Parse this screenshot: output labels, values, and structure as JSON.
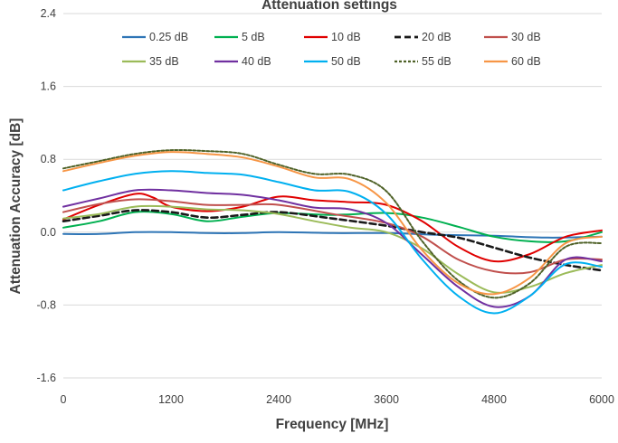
{
  "chart_data": {
    "type": "line",
    "title": "Attenuation settings",
    "xlabel": "Frequency [MHz]",
    "ylabel": "Attenuation Accuracy [dB]",
    "xlim": [
      0,
      6000
    ],
    "ylim": [
      -1.6,
      2.4
    ],
    "x_ticks": [
      "0",
      "1200",
      "2400",
      "3600",
      "4800",
      "6000"
    ],
    "y_ticks": [
      "2.4",
      "1.6",
      "0.8",
      "0.0",
      "-0.8",
      "-1.6"
    ],
    "grid": "horizontal",
    "legend_position": "top",
    "series": [
      {
        "name": "0.25 dB",
        "color": "#2e75b6",
        "dash": "solid",
        "points": [
          [
            0,
            -0.02
          ],
          [
            400,
            -0.02
          ],
          [
            800,
            0.0
          ],
          [
            1200,
            0.0
          ],
          [
            1600,
            -0.01
          ],
          [
            2000,
            -0.01
          ],
          [
            2400,
            0.0
          ],
          [
            3000,
            -0.01
          ],
          [
            3600,
            -0.01
          ],
          [
            4200,
            -0.03
          ],
          [
            4800,
            -0.04
          ],
          [
            5400,
            -0.06
          ],
          [
            6000,
            -0.05
          ]
        ]
      },
      {
        "name": "5 dB",
        "color": "#00b050",
        "dash": "solid",
        "points": [
          [
            0,
            0.05
          ],
          [
            400,
            0.12
          ],
          [
            800,
            0.22
          ],
          [
            1200,
            0.2
          ],
          [
            1600,
            0.12
          ],
          [
            2000,
            0.17
          ],
          [
            2400,
            0.21
          ],
          [
            3000,
            0.19
          ],
          [
            3600,
            0.21
          ],
          [
            4000,
            0.16
          ],
          [
            4400,
            0.06
          ],
          [
            4800,
            -0.05
          ],
          [
            5200,
            -0.1
          ],
          [
            5600,
            -0.1
          ],
          [
            6000,
            0.0
          ]
        ]
      },
      {
        "name": "10 dB",
        "color": "#e00000",
        "dash": "solid",
        "points": [
          [
            0,
            0.14
          ],
          [
            400,
            0.3
          ],
          [
            800,
            0.42
          ],
          [
            1000,
            0.38
          ],
          [
            1200,
            0.28
          ],
          [
            1600,
            0.23
          ],
          [
            2000,
            0.28
          ],
          [
            2400,
            0.39
          ],
          [
            2800,
            0.35
          ],
          [
            3200,
            0.33
          ],
          [
            3600,
            0.3
          ],
          [
            4000,
            0.12
          ],
          [
            4400,
            -0.16
          ],
          [
            4800,
            -0.32
          ],
          [
            5200,
            -0.24
          ],
          [
            5600,
            -0.05
          ],
          [
            6000,
            0.02
          ]
        ]
      },
      {
        "name": "20 dB",
        "color": "#1a1a1a",
        "dash": "dashed",
        "points": [
          [
            0,
            0.12
          ],
          [
            400,
            0.18
          ],
          [
            800,
            0.24
          ],
          [
            1200,
            0.22
          ],
          [
            1600,
            0.16
          ],
          [
            2000,
            0.19
          ],
          [
            2400,
            0.22
          ],
          [
            3000,
            0.15
          ],
          [
            3600,
            0.07
          ],
          [
            4000,
            0.0
          ],
          [
            4400,
            -0.06
          ],
          [
            4800,
            -0.17
          ],
          [
            5200,
            -0.28
          ],
          [
            5600,
            -0.36
          ],
          [
            6000,
            -0.42
          ]
        ]
      },
      {
        "name": "30 dB",
        "color": "#c0504d",
        "dash": "solid",
        "points": [
          [
            0,
            0.22
          ],
          [
            400,
            0.31
          ],
          [
            800,
            0.36
          ],
          [
            1200,
            0.34
          ],
          [
            1600,
            0.3
          ],
          [
            2000,
            0.3
          ],
          [
            2400,
            0.3
          ],
          [
            3000,
            0.2
          ],
          [
            3600,
            0.1
          ],
          [
            4000,
            -0.05
          ],
          [
            4400,
            -0.3
          ],
          [
            4800,
            -0.43
          ],
          [
            5200,
            -0.44
          ],
          [
            5600,
            -0.3
          ],
          [
            6000,
            -0.3
          ]
        ]
      },
      {
        "name": "35 dB",
        "color": "#9bbb59",
        "dash": "solid",
        "points": [
          [
            0,
            0.15
          ],
          [
            400,
            0.2
          ],
          [
            800,
            0.28
          ],
          [
            1200,
            0.28
          ],
          [
            1600,
            0.25
          ],
          [
            2000,
            0.24
          ],
          [
            2400,
            0.2
          ],
          [
            2800,
            0.12
          ],
          [
            3200,
            0.05
          ],
          [
            3600,
            0.0
          ],
          [
            4000,
            -0.18
          ],
          [
            4400,
            -0.46
          ],
          [
            4800,
            -0.66
          ],
          [
            5200,
            -0.6
          ],
          [
            5600,
            -0.45
          ],
          [
            6000,
            -0.36
          ]
        ]
      },
      {
        "name": "40 dB",
        "color": "#7030a0",
        "dash": "solid",
        "points": [
          [
            0,
            0.28
          ],
          [
            400,
            0.37
          ],
          [
            800,
            0.46
          ],
          [
            1200,
            0.46
          ],
          [
            1600,
            0.43
          ],
          [
            2000,
            0.41
          ],
          [
            2400,
            0.35
          ],
          [
            2800,
            0.27
          ],
          [
            3200,
            0.25
          ],
          [
            3600,
            0.1
          ],
          [
            4000,
            -0.25
          ],
          [
            4400,
            -0.6
          ],
          [
            4800,
            -0.82
          ],
          [
            5200,
            -0.7
          ],
          [
            5600,
            -0.3
          ],
          [
            6000,
            -0.32
          ]
        ]
      },
      {
        "name": "50 dB",
        "color": "#00b0f0",
        "dash": "solid",
        "points": [
          [
            0,
            0.46
          ],
          [
            400,
            0.56
          ],
          [
            800,
            0.64
          ],
          [
            1200,
            0.67
          ],
          [
            1600,
            0.65
          ],
          [
            2000,
            0.63
          ],
          [
            2400,
            0.55
          ],
          [
            2800,
            0.46
          ],
          [
            3200,
            0.44
          ],
          [
            3600,
            0.2
          ],
          [
            4000,
            -0.3
          ],
          [
            4400,
            -0.7
          ],
          [
            4800,
            -0.89
          ],
          [
            5200,
            -0.7
          ],
          [
            5600,
            -0.35
          ],
          [
            6000,
            -0.38
          ]
        ]
      },
      {
        "name": "55 dB",
        "color": "#4f6228",
        "dash": "dotted",
        "points": [
          [
            0,
            0.7
          ],
          [
            400,
            0.78
          ],
          [
            800,
            0.86
          ],
          [
            1200,
            0.9
          ],
          [
            1600,
            0.89
          ],
          [
            2000,
            0.86
          ],
          [
            2400,
            0.74
          ],
          [
            2800,
            0.64
          ],
          [
            3200,
            0.63
          ],
          [
            3600,
            0.45
          ],
          [
            4000,
            -0.1
          ],
          [
            4400,
            -0.53
          ],
          [
            4800,
            -0.72
          ],
          [
            5200,
            -0.56
          ],
          [
            5600,
            -0.16
          ],
          [
            6000,
            -0.12
          ]
        ]
      },
      {
        "name": "60 dB",
        "color": "#f79646",
        "dash": "solid",
        "points": [
          [
            0,
            0.67
          ],
          [
            400,
            0.76
          ],
          [
            800,
            0.84
          ],
          [
            1200,
            0.88
          ],
          [
            1600,
            0.86
          ],
          [
            2000,
            0.82
          ],
          [
            2400,
            0.72
          ],
          [
            2800,
            0.6
          ],
          [
            3200,
            0.58
          ],
          [
            3600,
            0.32
          ],
          [
            4000,
            -0.2
          ],
          [
            4400,
            -0.56
          ],
          [
            4800,
            -0.68
          ],
          [
            5200,
            -0.5
          ],
          [
            5600,
            -0.12
          ],
          [
            6000,
            -0.05
          ]
        ]
      }
    ]
  }
}
